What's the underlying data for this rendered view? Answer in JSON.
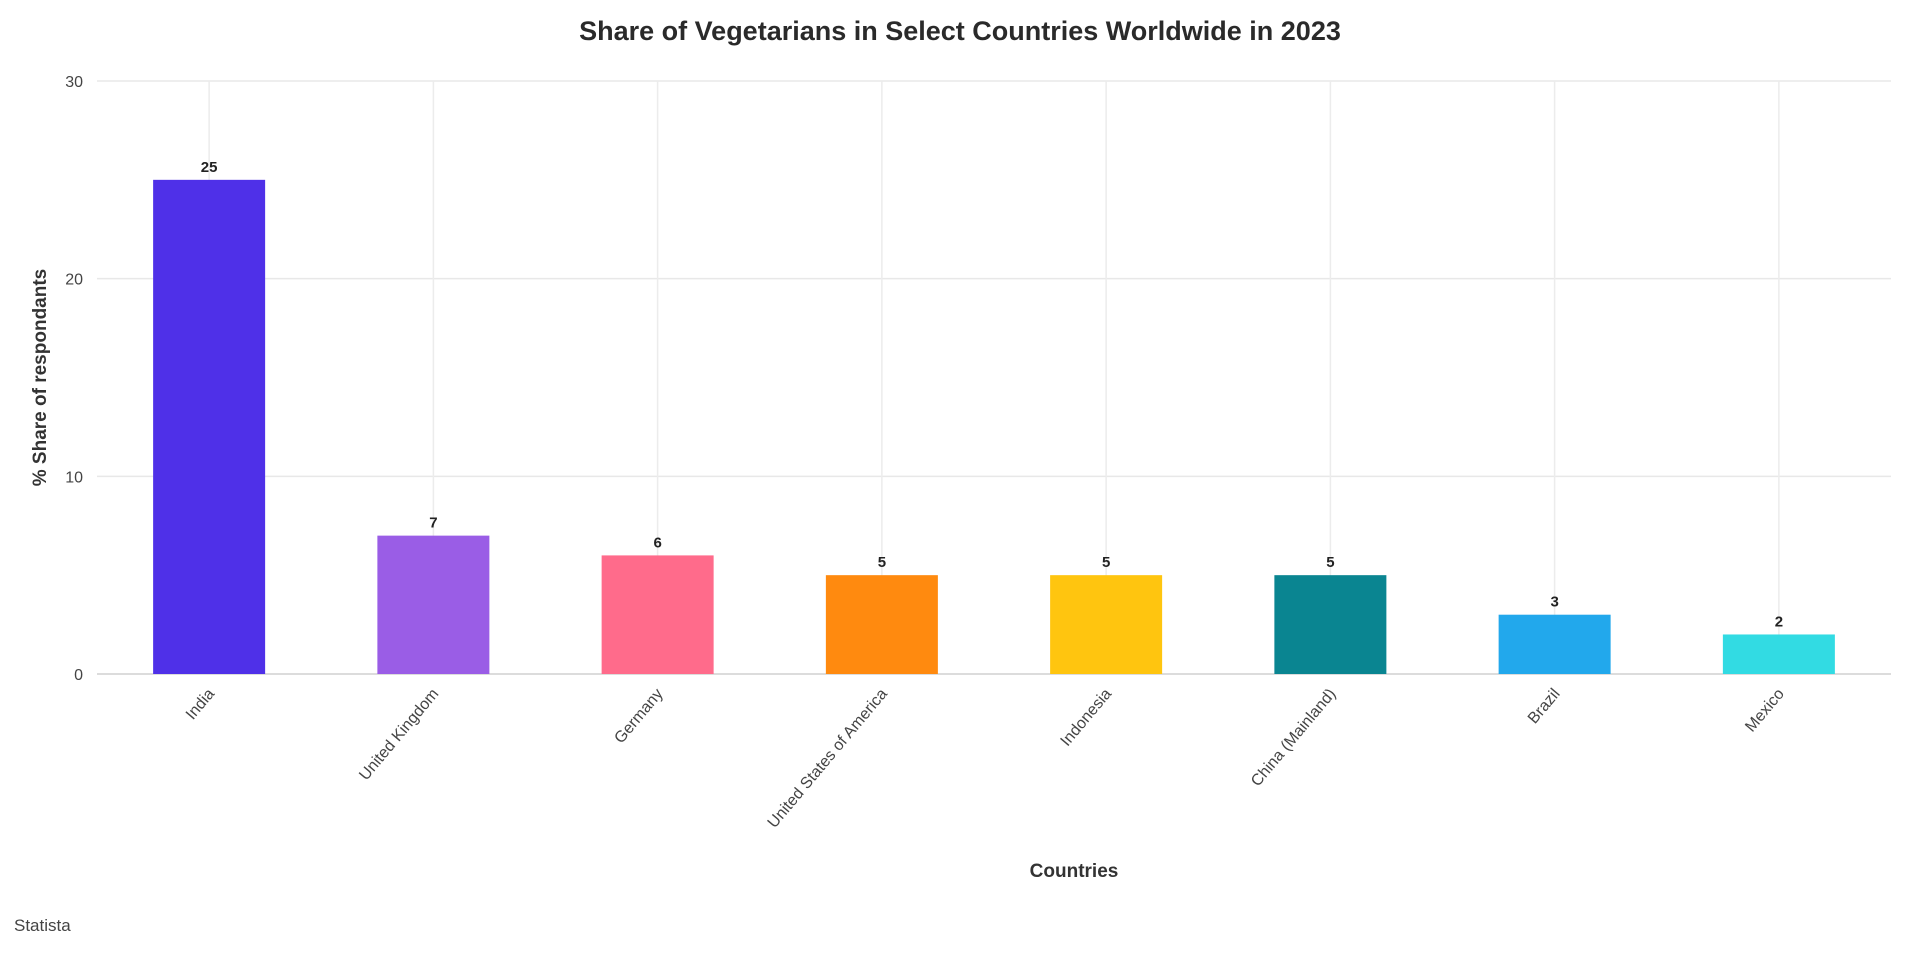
{
  "chart_data": {
    "type": "bar",
    "title": "Share of Vegetarians in Select Countries Worldwide in 2023",
    "xlabel": "Countries",
    "ylabel": "% Share of respondants",
    "ylim": [
      0,
      30
    ],
    "yticks": [
      0,
      10,
      20,
      30
    ],
    "grid": true,
    "categories": [
      "India",
      "United Kingdom",
      "Germany",
      "United States of America",
      "Indonesia",
      "China (Mainland)",
      "Brazil",
      "Mexico"
    ],
    "values": [
      25,
      7,
      6,
      5,
      5,
      5,
      3,
      2
    ],
    "colors": [
      "#4f30e8",
      "#9a5de6",
      "#ff6b8b",
      "#ff8a0f",
      "#ffc50f",
      "#0a8591",
      "#22a8ec",
      "#32dbe3"
    ]
  },
  "footer": "Statista"
}
